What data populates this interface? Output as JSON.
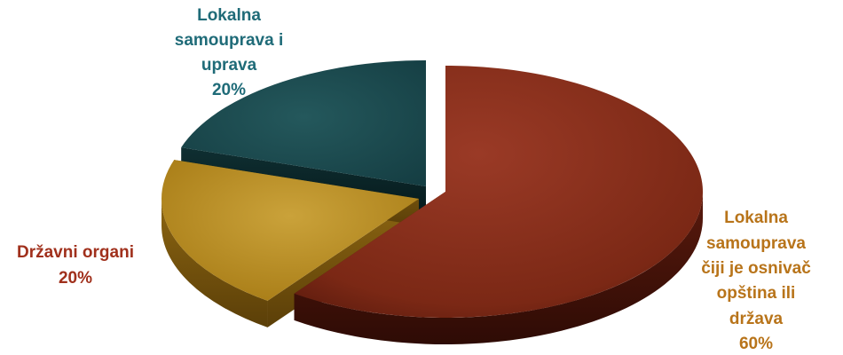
{
  "chart_data": {
    "type": "pie",
    "title": "",
    "slices": [
      {
        "name": "Lokalna samouprava čiji je osnivač opština ili država",
        "value": 60,
        "color": "#8b3220",
        "label_lines": [
          "Lokalna",
          "samouprava",
          "čiji je osnivač",
          "opština ili",
          "država",
          "60%"
        ]
      },
      {
        "name": "Državni organi",
        "value": 20,
        "color": "#c3941e",
        "label_lines": [
          "Državni organi",
          "20%"
        ]
      },
      {
        "name": "Lokalna samouprava i uprava",
        "value": 20,
        "color": "#1c4f55",
        "label_lines": [
          "Lokalna",
          "samouprava i",
          "uprava",
          "20%"
        ]
      }
    ],
    "legend": "none",
    "style": "3d-exploded"
  },
  "colors": {
    "label_red": "#a0301c",
    "label_orange": "#b8741a",
    "label_teal": "#1f6b78"
  }
}
